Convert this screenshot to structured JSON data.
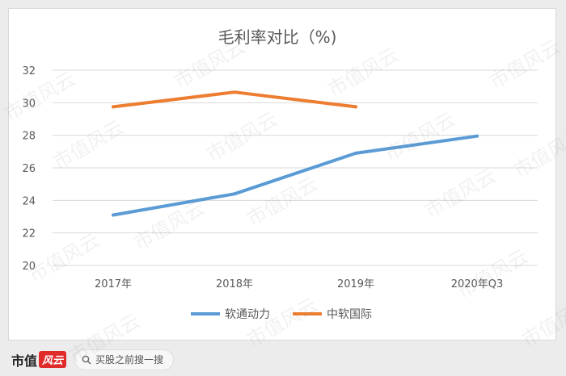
{
  "chart_data": {
    "type": "line",
    "title": "毛利率对比（%)",
    "categories": [
      "2017年",
      "2018年",
      "2019年",
      "2020年Q3"
    ],
    "ylim": [
      20,
      32
    ],
    "yticks": [
      20,
      22,
      24,
      26,
      28,
      30,
      32
    ],
    "grid": true,
    "legend_position": "bottom",
    "series": [
      {
        "name": "软通动力",
        "color": "#5b9bd5",
        "values": [
          23.1,
          24.4,
          26.9,
          27.95
        ]
      },
      {
        "name": "中软国际",
        "color": "#ed7d31",
        "values": [
          29.75,
          30.65,
          29.75,
          null
        ]
      }
    ]
  },
  "footer": {
    "brand_text": "市值",
    "brand_wind": "风云",
    "search_placeholder": "买股之前搜一搜"
  },
  "watermark_text": "市值风云"
}
